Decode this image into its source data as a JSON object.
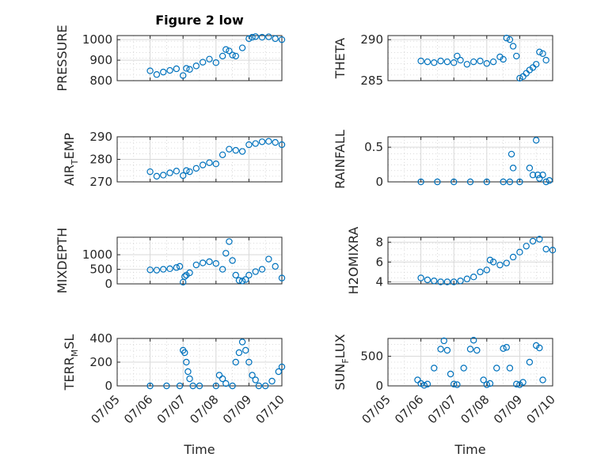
{
  "figure": {
    "title": "Figure 2 low",
    "xlabel": "Time"
  },
  "colors": {
    "marker": "#0072BD",
    "axis": "#262626",
    "grid": "#cfcfcf"
  },
  "x_tick_labels": [
    "07/05",
    "07/06",
    "07/07",
    "07/08",
    "07/09",
    "07/10"
  ],
  "chart_data": [
    {
      "type": "scatter",
      "ylabel_main": "PRESSURE",
      "ylabel_sub": "",
      "ylabel_tail": "",
      "title": "Figure 2 low",
      "xlim": [
        0,
        5
      ],
      "ylim": [
        800,
        1020
      ],
      "yticks": [
        800,
        900,
        1000
      ],
      "x": [
        1.0,
        1.2,
        1.4,
        1.6,
        1.8,
        2.0,
        2.1,
        2.2,
        2.4,
        2.6,
        2.8,
        3.0,
        3.2,
        3.3,
        3.4,
        3.5,
        3.6,
        3.8,
        4.0,
        4.1,
        4.2,
        4.4,
        4.6,
        4.8,
        5.0
      ],
      "y": [
        848,
        830,
        842,
        850,
        858,
        825,
        860,
        855,
        872,
        890,
        905,
        888,
        920,
        952,
        945,
        925,
        920,
        960,
        1005,
        1012,
        1015,
        1012,
        1014,
        1005,
        1000
      ]
    },
    {
      "type": "scatter",
      "ylabel_main": "THETA",
      "ylabel_sub": "",
      "ylabel_tail": "",
      "xlim": [
        0,
        5
      ],
      "ylim": [
        285,
        290.5
      ],
      "yticks": [
        285,
        290
      ],
      "x": [
        1.0,
        1.2,
        1.4,
        1.6,
        1.8,
        2.0,
        2.1,
        2.2,
        2.4,
        2.6,
        2.8,
        3.0,
        3.2,
        3.4,
        3.5,
        3.6,
        3.7,
        3.8,
        3.9,
        4.0,
        4.1,
        4.2,
        4.3,
        4.4,
        4.5,
        4.6,
        4.7,
        4.8
      ],
      "y": [
        287.4,
        287.3,
        287.2,
        287.4,
        287.3,
        287.2,
        288.0,
        287.5,
        287.0,
        287.3,
        287.4,
        287.1,
        287.3,
        287.9,
        287.6,
        290.2,
        290.0,
        289.2,
        288.0,
        285.3,
        285.5,
        285.9,
        286.3,
        286.6,
        287.0,
        288.5,
        288.3,
        287.5
      ]
    },
    {
      "type": "scatter",
      "ylabel_main": "AIR",
      "ylabel_sub": "T",
      "ylabel_tail": "EMP",
      "xlim": [
        0,
        5
      ],
      "ylim": [
        270,
        290
      ],
      "yticks": [
        270,
        280,
        290
      ],
      "x": [
        1.0,
        1.2,
        1.4,
        1.6,
        1.8,
        2.0,
        2.1,
        2.2,
        2.4,
        2.6,
        2.8,
        3.0,
        3.2,
        3.4,
        3.6,
        3.8,
        4.0,
        4.2,
        4.4,
        4.6,
        4.8,
        5.0
      ],
      "y": [
        274.5,
        272.5,
        273.0,
        274.0,
        274.8,
        272.8,
        275.0,
        274.5,
        276.0,
        277.5,
        278.5,
        278.0,
        282.0,
        284.5,
        284.0,
        283.5,
        286.5,
        287.0,
        287.8,
        288.0,
        287.5,
        286.5
      ]
    },
    {
      "type": "scatter",
      "ylabel_main": "RAINFALL",
      "ylabel_sub": "",
      "ylabel_tail": "",
      "xlim": [
        0,
        5
      ],
      "ylim": [
        0,
        0.65
      ],
      "yticks": [
        0,
        0.5
      ],
      "x": [
        1.0,
        1.5,
        2.0,
        2.5,
        3.0,
        3.5,
        3.7,
        3.75,
        3.8,
        4.0,
        4.3,
        4.4,
        4.5,
        4.55,
        4.6,
        4.7,
        4.8,
        4.9
      ],
      "y": [
        0,
        0,
        0,
        0,
        0,
        0,
        0,
        0.4,
        0.2,
        0,
        0.2,
        0.1,
        0.6,
        0.1,
        0.05,
        0.1,
        0,
        0.02
      ]
    },
    {
      "type": "scatter",
      "ylabel_main": "MIXDEPTH",
      "ylabel_sub": "",
      "ylabel_tail": "",
      "xlim": [
        0,
        5
      ],
      "ylim": [
        0,
        1600
      ],
      "yticks": [
        0,
        500,
        1000
      ],
      "x": [
        1.0,
        1.2,
        1.4,
        1.6,
        1.8,
        1.9,
        2.0,
        2.05,
        2.1,
        2.2,
        2.4,
        2.6,
        2.8,
        3.0,
        3.2,
        3.3,
        3.4,
        3.5,
        3.6,
        3.7,
        3.8,
        3.9,
        4.0,
        4.2,
        4.4,
        4.6,
        4.8,
        5.0
      ],
      "y": [
        480,
        470,
        500,
        520,
        560,
        600,
        60,
        250,
        300,
        380,
        650,
        720,
        760,
        700,
        500,
        1050,
        1450,
        800,
        300,
        120,
        100,
        150,
        300,
        420,
        500,
        850,
        600,
        200
      ]
    },
    {
      "type": "scatter",
      "ylabel_main": "H2OMIXRA",
      "ylabel_sub": "",
      "ylabel_tail": "",
      "xlim": [
        0,
        5
      ],
      "ylim": [
        3.8,
        8.5
      ],
      "yticks": [
        4,
        6,
        8
      ],
      "x": [
        1.0,
        1.2,
        1.4,
        1.6,
        1.8,
        2.0,
        2.2,
        2.4,
        2.6,
        2.8,
        3.0,
        3.1,
        3.2,
        3.4,
        3.6,
        3.8,
        4.0,
        4.2,
        4.4,
        4.6,
        4.8,
        5.0
      ],
      "y": [
        4.4,
        4.2,
        4.1,
        4.0,
        4.0,
        4.0,
        4.1,
        4.3,
        4.5,
        5.0,
        5.2,
        6.2,
        6.0,
        5.7,
        5.9,
        6.5,
        7.0,
        7.6,
        8.1,
        8.3,
        7.3,
        7.2
      ]
    },
    {
      "type": "scatter",
      "ylabel_main": "TERR",
      "ylabel_sub": "M",
      "ylabel_tail": "SL",
      "xlim": [
        0,
        5
      ],
      "ylim": [
        0,
        400
      ],
      "yticks": [
        0,
        200,
        400
      ],
      "x": [
        1.0,
        1.5,
        1.9,
        2.0,
        2.05,
        2.1,
        2.15,
        2.2,
        2.3,
        2.5,
        3.0,
        3.1,
        3.2,
        3.3,
        3.5,
        3.6,
        3.7,
        3.8,
        3.9,
        4.0,
        4.1,
        4.2,
        4.3,
        4.5,
        4.7,
        4.9,
        5.0
      ],
      "y": [
        0,
        0,
        0,
        300,
        280,
        200,
        120,
        60,
        0,
        0,
        0,
        90,
        60,
        20,
        0,
        200,
        280,
        370,
        300,
        200,
        90,
        50,
        0,
        0,
        40,
        120,
        160
      ]
    },
    {
      "type": "scatter",
      "ylabel_main": "SUN",
      "ylabel_sub": "F",
      "ylabel_tail": "LUX",
      "xlim": [
        0,
        5
      ],
      "ylim": [
        0,
        800
      ],
      "yticks": [
        0,
        500
      ],
      "x": [
        0.9,
        1.0,
        1.1,
        1.2,
        1.4,
        1.6,
        1.7,
        1.8,
        1.9,
        2.0,
        2.1,
        2.3,
        2.5,
        2.6,
        2.7,
        2.9,
        3.0,
        3.1,
        3.3,
        3.5,
        3.6,
        3.7,
        3.9,
        4.0,
        4.1,
        4.3,
        4.5,
        4.6,
        4.7
      ],
      "y": [
        100,
        40,
        10,
        30,
        300,
        620,
        760,
        600,
        200,
        30,
        20,
        300,
        620,
        770,
        600,
        100,
        20,
        40,
        300,
        630,
        650,
        300,
        30,
        20,
        60,
        400,
        680,
        640,
        100
      ]
    }
  ]
}
